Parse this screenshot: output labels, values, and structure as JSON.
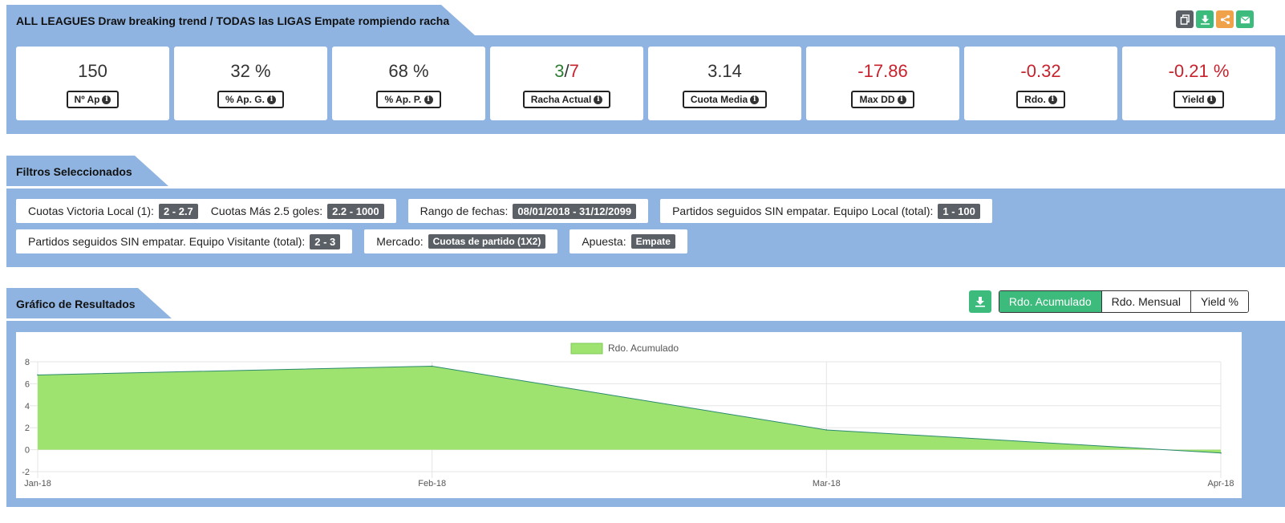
{
  "header": {
    "title": "ALL LEAGUES Draw breaking trend / TODAS las LIGAS Empate rompiendo racha"
  },
  "stats": [
    {
      "value": "150",
      "label": "Nº Ap",
      "tone": "neutral"
    },
    {
      "value": "32 %",
      "label": "% Ap. G.",
      "tone": "neutral"
    },
    {
      "value": "68 %",
      "label": "% Ap. P.",
      "tone": "neutral"
    },
    {
      "value": "",
      "label": "Racha Actual",
      "tone": "neutral",
      "streak": {
        "wins": "3",
        "separator": "/",
        "losses": "7"
      }
    },
    {
      "value": "3.14",
      "label": "Cuota Media",
      "tone": "neutral"
    },
    {
      "value": "-17.86",
      "label": "Max DD",
      "tone": "negative"
    },
    {
      "value": "-0.32",
      "label": "Rdo.",
      "tone": "negative"
    },
    {
      "value": "-0.21 %",
      "label": "Yield",
      "tone": "negative"
    }
  ],
  "filters": {
    "title": "Filtros Seleccionados",
    "row1": [
      {
        "label": "Cuotas Victoria Local (1):",
        "value": "2 - 2.7"
      },
      {
        "label": "Cuotas Más 2.5 goles:",
        "value": "2.2 - 1000"
      },
      {
        "label": "Rango de fechas:",
        "value": "08/01/2018 - 31/12/2099"
      },
      {
        "label": "Partidos seguidos SIN empatar. Equipo Local (total):",
        "value": "1 - 100"
      }
    ],
    "row2": [
      {
        "label": "Partidos seguidos SIN empatar. Equipo Visitante (total):",
        "value": "2 - 3"
      },
      {
        "label": "Mercado:",
        "value": "Cuotas de partido (1X2)"
      },
      {
        "label": "Apuesta:",
        "value": "Empate"
      }
    ]
  },
  "results": {
    "title": "Gráfico de Resultados",
    "tabs": [
      {
        "label": "Rdo. Acumulado",
        "active": true
      },
      {
        "label": "Rdo. Mensual",
        "active": false
      },
      {
        "label": "Yield %",
        "active": false
      }
    ]
  },
  "chart_data": {
    "type": "area",
    "categories": [
      "Jan-18",
      "Feb-18",
      "Mar-18",
      "Apr-18"
    ],
    "series": [
      {
        "name": "Rdo. Acumulado",
        "values": [
          6.8,
          7.6,
          1.8,
          -0.3
        ]
      }
    ],
    "yticks": [
      "8",
      "6",
      "4",
      "2",
      "0",
      "-2"
    ],
    "ylim": [
      -2,
      8
    ],
    "grid": true,
    "legend": "top",
    "colors": {
      "fill": "#9ee26f",
      "line": "#2a8a6e",
      "grid": "#e5e5e5"
    }
  },
  "colors": {
    "panel": "#8fb4e1",
    "accent_green": "#3dbb7d",
    "negative": "#c8222c",
    "badge": "#5b6066"
  },
  "icons": [
    "copy-icon",
    "download-icon",
    "share-icon",
    "email-icon"
  ]
}
